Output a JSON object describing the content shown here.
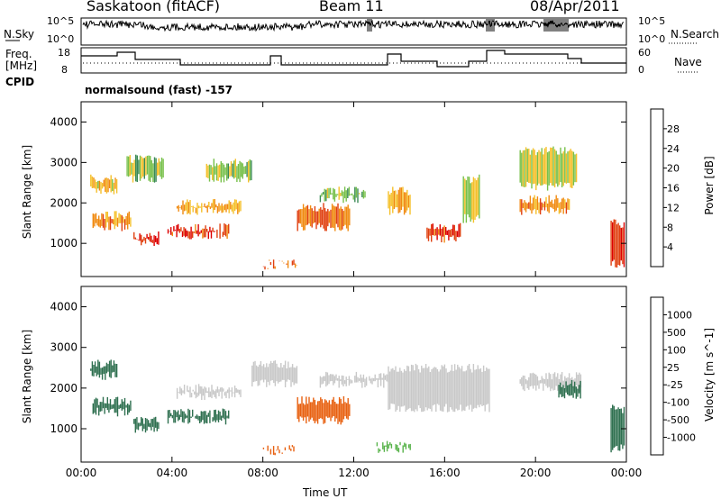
{
  "header": {
    "station": "Saskatoon (fitACF)",
    "beam": "Beam 11",
    "date": "08/Apr/2011"
  },
  "side_labels": {
    "nsky": "N.Sky",
    "nsearch": "N.Search",
    "freq_1": "Freq.",
    "freq_2": "[MHz]",
    "cpid": "CPID",
    "nave": "Nave"
  },
  "top_panel": {
    "nsky_ticks": [
      "10^5",
      "10^0"
    ],
    "nsearch_ticks": [
      "10^5",
      "10^0"
    ],
    "freq_ticks": [
      "18",
      "8"
    ],
    "nave_ticks": [
      "60",
      "0"
    ],
    "cpid_text": "normalsound (fast) -157"
  },
  "colors": {
    "power": [
      "#0000ee",
      "#2c4fa0",
      "#3b8a55",
      "#77c04a",
      "#f5c02a",
      "#f08a10",
      "#e04010",
      "#dd0000"
    ],
    "velocity": [
      "#1a3fa0",
      "#2f7050",
      "#58b34a",
      "#c8c8c8",
      "#f0a020",
      "#e86010",
      "#dd0000"
    ]
  },
  "chart_data": [
    {
      "type": "heatmap",
      "quantity": "Power",
      "xlabel": "Time UT",
      "ylabel": "Slant Range [km]",
      "xlim": [
        0,
        24
      ],
      "ylim": [
        180,
        4500
      ],
      "x_ticks": [
        "00:00",
        "04:00",
        "08:00",
        "12:00",
        "16:00",
        "20:00",
        "00:00"
      ],
      "y_ticks": [
        "1000",
        "2000",
        "3000",
        "4000"
      ],
      "colorbar_label": "Power [dB]",
      "colorbar_ticks": [
        "4",
        "8",
        "12",
        "16",
        "20",
        "24",
        "28"
      ],
      "colorbar_range": [
        0,
        30
      ],
      "echo_regions": [
        {
          "t": [
            0.4,
            1.6
          ],
          "range": [
            2200,
            2700
          ],
          "value": 18
        },
        {
          "t": [
            0.5,
            2.2
          ],
          "range": [
            1300,
            1800
          ],
          "value": 22
        },
        {
          "t": [
            2.3,
            3.4
          ],
          "range": [
            900,
            1300
          ],
          "value": 28
        },
        {
          "t": [
            2.0,
            3.6
          ],
          "range": [
            2500,
            3200
          ],
          "value": 14
        },
        {
          "t": [
            3.8,
            6.5
          ],
          "range": [
            1100,
            1500
          ],
          "value": 27
        },
        {
          "t": [
            4.2,
            7.0
          ],
          "range": [
            1700,
            2100
          ],
          "value": 20
        },
        {
          "t": [
            5.5,
            7.5
          ],
          "range": [
            2500,
            3100
          ],
          "value": 14
        },
        {
          "t": [
            8.0,
            9.5
          ],
          "range": [
            350,
            600
          ],
          "value": 24
        },
        {
          "t": [
            9.5,
            11.8
          ],
          "range": [
            1300,
            2000
          ],
          "value": 24
        },
        {
          "t": [
            10.5,
            12.5
          ],
          "range": [
            2000,
            2400
          ],
          "value": 14
        },
        {
          "t": [
            13.5,
            14.5
          ],
          "range": [
            1700,
            2400
          ],
          "value": 20
        },
        {
          "t": [
            15.2,
            16.7
          ],
          "range": [
            1000,
            1500
          ],
          "value": 27
        },
        {
          "t": [
            16.8,
            17.5
          ],
          "range": [
            1500,
            2700
          ],
          "value": 16
        },
        {
          "t": [
            19.3,
            21.5
          ],
          "range": [
            1700,
            2200
          ],
          "value": 22
        },
        {
          "t": [
            19.3,
            21.8
          ],
          "range": [
            2300,
            3400
          ],
          "value": 16
        },
        {
          "t": [
            23.3,
            23.9
          ],
          "range": [
            400,
            1600
          ],
          "value": 28
        }
      ]
    },
    {
      "type": "heatmap",
      "quantity": "Velocity",
      "xlabel": "Time UT",
      "ylabel": "Slant Range [km]",
      "xlim": [
        0,
        24
      ],
      "ylim": [
        180,
        4500
      ],
      "x_ticks": [
        "00:00",
        "04:00",
        "08:00",
        "12:00",
        "16:00",
        "20:00",
        "00:00"
      ],
      "y_ticks": [
        "1000",
        "2000",
        "3000",
        "4000"
      ],
      "colorbar_label": "Velocity [m s^-1]",
      "colorbar_ticks": [
        "1000",
        "500",
        "100",
        "25",
        "-25",
        "-100",
        "-500",
        "-1000"
      ],
      "colorbar_range": [
        -1000,
        1000
      ],
      "echo_regions": [
        {
          "t": [
            0.4,
            1.6
          ],
          "range": [
            2200,
            2700
          ],
          "value": 150
        },
        {
          "t": [
            0.5,
            2.2
          ],
          "range": [
            1300,
            1800
          ],
          "value": 200
        },
        {
          "t": [
            2.3,
            3.4
          ],
          "range": [
            900,
            1300
          ],
          "value": 200
        },
        {
          "t": [
            3.8,
            6.5
          ],
          "range": [
            1100,
            1500
          ],
          "value": 200
        },
        {
          "t": [
            4.2,
            7.0
          ],
          "range": [
            1700,
            2100
          ],
          "value": 0
        },
        {
          "t": [
            7.5,
            9.5
          ],
          "range": [
            2000,
            2700
          ],
          "value": 0
        },
        {
          "t": [
            8.0,
            9.5
          ],
          "range": [
            350,
            600
          ],
          "value": -200
        },
        {
          "t": [
            9.5,
            11.8
          ],
          "range": [
            1100,
            1800
          ],
          "value": -200
        },
        {
          "t": [
            10.5,
            13.5
          ],
          "range": [
            2000,
            2400
          ],
          "value": 0
        },
        {
          "t": [
            13.0,
            14.5
          ],
          "range": [
            400,
            700
          ],
          "value": 80
        },
        {
          "t": [
            13.5,
            18.0
          ],
          "range": [
            1400,
            2600
          ],
          "value": 0
        },
        {
          "t": [
            19.3,
            22.0
          ],
          "range": [
            1900,
            2400
          ],
          "value": 0
        },
        {
          "t": [
            21.0,
            22.0
          ],
          "range": [
            1700,
            2200
          ],
          "value": 300
        },
        {
          "t": [
            23.3,
            23.9
          ],
          "range": [
            400,
            1600
          ],
          "value": 200
        }
      ]
    }
  ]
}
